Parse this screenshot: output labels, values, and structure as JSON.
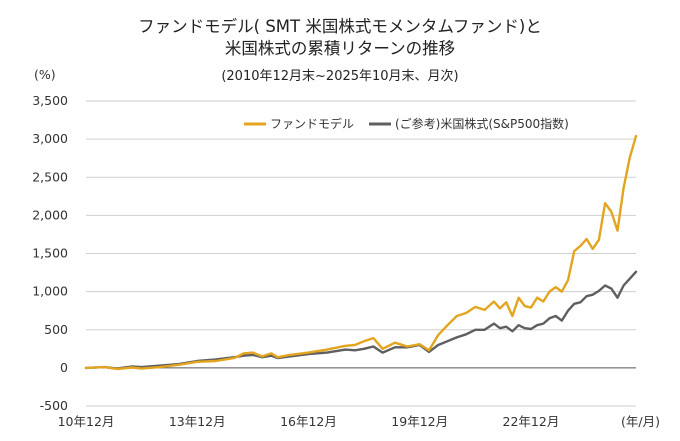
{
  "chart_data": {
    "type": "line",
    "title": "ファンドモデル( SMT 米国株式モメンタムファンド)と",
    "title_line2": "米国株式の累積リターンの推移",
    "subtitle": "(2010年12月末~2025年10月末、月次)",
    "y_unit_label": "(%)",
    "x_unit_label": "(年/月)",
    "ylim": [
      -500,
      3500
    ],
    "y_ticks": [
      -500,
      0,
      500,
      1000,
      1500,
      2000,
      2500,
      3000,
      3500
    ],
    "y_tick_labels": [
      "-500",
      "0",
      "500",
      "1,000",
      "1,500",
      "2,000",
      "2,500",
      "3,000",
      "3,500"
    ],
    "xlim": [
      "2010-12",
      "2025-10"
    ],
    "x_ticks": [
      {
        "date": "2010-12",
        "label": "10年12月"
      },
      {
        "date": "2013-12",
        "label": "13年12月"
      },
      {
        "date": "2016-12",
        "label": "16年12月"
      },
      {
        "date": "2019-12",
        "label": "19年12月"
      },
      {
        "date": "2022-12",
        "label": "22年12月"
      }
    ],
    "grid": "horizontal",
    "legend_position": "top-right",
    "series": [
      {
        "name": "ファンドモデル",
        "color": "#E3A51F",
        "points": [
          [
            "2010-12",
            0
          ],
          [
            "2011-06",
            10
          ],
          [
            "2011-10",
            -15
          ],
          [
            "2012-03",
            5
          ],
          [
            "2012-06",
            -10
          ],
          [
            "2012-12",
            10
          ],
          [
            "2013-06",
            40
          ],
          [
            "2013-12",
            80
          ],
          [
            "2014-06",
            90
          ],
          [
            "2014-12",
            130
          ],
          [
            "2015-03",
            190
          ],
          [
            "2015-06",
            200
          ],
          [
            "2015-09",
            150
          ],
          [
            "2015-12",
            190
          ],
          [
            "2016-02",
            140
          ],
          [
            "2016-06",
            170
          ],
          [
            "2016-12",
            200
          ],
          [
            "2017-06",
            240
          ],
          [
            "2017-12",
            290
          ],
          [
            "2018-03",
            300
          ],
          [
            "2018-06",
            350
          ],
          [
            "2018-09",
            390
          ],
          [
            "2018-12",
            250
          ],
          [
            "2019-04",
            330
          ],
          [
            "2019-08",
            280
          ],
          [
            "2019-12",
            310
          ],
          [
            "2020-03",
            230
          ],
          [
            "2020-06",
            430
          ],
          [
            "2020-09",
            560
          ],
          [
            "2020-12",
            680
          ],
          [
            "2021-03",
            720
          ],
          [
            "2021-06",
            800
          ],
          [
            "2021-09",
            760
          ],
          [
            "2021-12",
            870
          ],
          [
            "2022-02",
            780
          ],
          [
            "2022-04",
            860
          ],
          [
            "2022-06",
            680
          ],
          [
            "2022-08",
            920
          ],
          [
            "2022-10",
            810
          ],
          [
            "2022-12",
            790
          ],
          [
            "2023-02",
            920
          ],
          [
            "2023-04",
            870
          ],
          [
            "2023-06",
            1000
          ],
          [
            "2023-08",
            1060
          ],
          [
            "2023-10",
            1000
          ],
          [
            "2023-12",
            1150
          ],
          [
            "2024-02",
            1530
          ],
          [
            "2024-04",
            1600
          ],
          [
            "2024-06",
            1690
          ],
          [
            "2024-08",
            1560
          ],
          [
            "2024-10",
            1680
          ],
          [
            "2024-12",
            2160
          ],
          [
            "2025-02",
            2050
          ],
          [
            "2025-04",
            1800
          ],
          [
            "2025-06",
            2360
          ],
          [
            "2025-08",
            2760
          ],
          [
            "2025-10",
            3040
          ]
        ]
      },
      {
        "name": "(ご参考)米国株式(S&P500指数)",
        "color": "#5F5F5F",
        "points": [
          [
            "2010-12",
            0
          ],
          [
            "2011-06",
            10
          ],
          [
            "2011-10",
            -10
          ],
          [
            "2012-03",
            20
          ],
          [
            "2012-06",
            10
          ],
          [
            "2012-12",
            30
          ],
          [
            "2013-06",
            50
          ],
          [
            "2013-12",
            90
          ],
          [
            "2014-06",
            110
          ],
          [
            "2014-12",
            140
          ],
          [
            "2015-03",
            160
          ],
          [
            "2015-06",
            170
          ],
          [
            "2015-09",
            140
          ],
          [
            "2015-12",
            160
          ],
          [
            "2016-02",
            130
          ],
          [
            "2016-06",
            150
          ],
          [
            "2016-12",
            180
          ],
          [
            "2017-06",
            200
          ],
          [
            "2017-12",
            240
          ],
          [
            "2018-03",
            230
          ],
          [
            "2018-06",
            250
          ],
          [
            "2018-09",
            280
          ],
          [
            "2018-12",
            200
          ],
          [
            "2019-04",
            270
          ],
          [
            "2019-08",
            270
          ],
          [
            "2019-12",
            300
          ],
          [
            "2020-03",
            210
          ],
          [
            "2020-06",
            300
          ],
          [
            "2020-09",
            350
          ],
          [
            "2020-12",
            400
          ],
          [
            "2021-03",
            440
          ],
          [
            "2021-06",
            500
          ],
          [
            "2021-09",
            500
          ],
          [
            "2021-12",
            580
          ],
          [
            "2022-02",
            520
          ],
          [
            "2022-04",
            540
          ],
          [
            "2022-06",
            480
          ],
          [
            "2022-08",
            560
          ],
          [
            "2022-10",
            520
          ],
          [
            "2022-12",
            510
          ],
          [
            "2023-02",
            560
          ],
          [
            "2023-04",
            580
          ],
          [
            "2023-06",
            650
          ],
          [
            "2023-08",
            680
          ],
          [
            "2023-10",
            620
          ],
          [
            "2023-12",
            750
          ],
          [
            "2024-02",
            840
          ],
          [
            "2024-04",
            860
          ],
          [
            "2024-06",
            940
          ],
          [
            "2024-08",
            960
          ],
          [
            "2024-10",
            1010
          ],
          [
            "2024-12",
            1080
          ],
          [
            "2025-02",
            1040
          ],
          [
            "2025-04",
            920
          ],
          [
            "2025-06",
            1080
          ],
          [
            "2025-08",
            1170
          ],
          [
            "2025-10",
            1260
          ]
        ]
      }
    ]
  }
}
